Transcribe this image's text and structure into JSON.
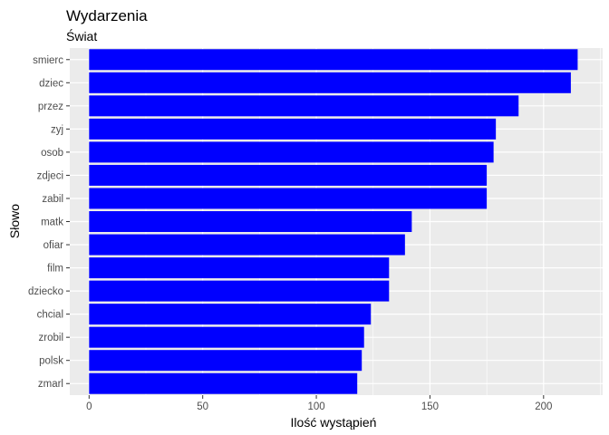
{
  "chart_data": {
    "type": "bar",
    "orientation": "horizontal",
    "title": "Wydarzenia",
    "subtitle": "Świat",
    "xlabel": "Ilość wystąpień",
    "ylabel": "Słowo",
    "categories": [
      "smierc",
      "dziec",
      "przez",
      "zyj",
      "osob",
      "zdjeci",
      "zabil",
      "matk",
      "ofiar",
      "film",
      "dziecko",
      "chcial",
      "zrobil",
      "polsk",
      "zmarl"
    ],
    "values": [
      215,
      212,
      189,
      179,
      178,
      175,
      175,
      142,
      139,
      132,
      132,
      124,
      121,
      120,
      118
    ],
    "xlim": [
      -8.5,
      226
    ],
    "x_ticks": [
      0,
      50,
      100,
      150,
      200
    ],
    "bar_color": "#0000ff",
    "panel_background": "#ebebeb",
    "grid": true,
    "legend": "none"
  }
}
